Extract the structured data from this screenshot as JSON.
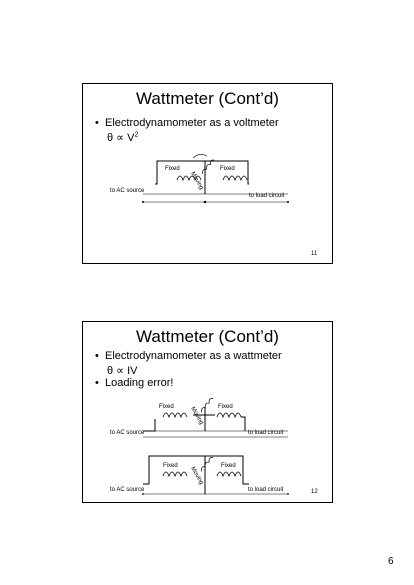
{
  "slides": [
    {
      "title": "Wattmeter (Cont’d)",
      "bullets": [
        "Electrodynamometer as a voltmeter"
      ],
      "formula": "θ ∝ V",
      "formula_exp": "2",
      "diagram": {
        "fixed_left": "Fixed",
        "fixed_right": "Fixed",
        "moving": "Moving",
        "source": "to AC source",
        "load": "to load circuit"
      },
      "number": "11"
    },
    {
      "title": "Wattmeter (Cont’d)",
      "bullets": [
        "Electrodynamometer as a wattmeter",
        "Loading error!"
      ],
      "formula": "θ ∝ IV",
      "diagrams": [
        {
          "fixed_left": "Fixed",
          "fixed_right": "Fixed",
          "moving": "Moving",
          "source": "to AC source",
          "load": "to load circuit"
        },
        {
          "fixed_left": "Fixed",
          "fixed_right": "Fixed",
          "moving": "Moving",
          "source": "to AC source",
          "load": "to load circuit"
        }
      ],
      "number": "12"
    }
  ],
  "page_number": "6"
}
